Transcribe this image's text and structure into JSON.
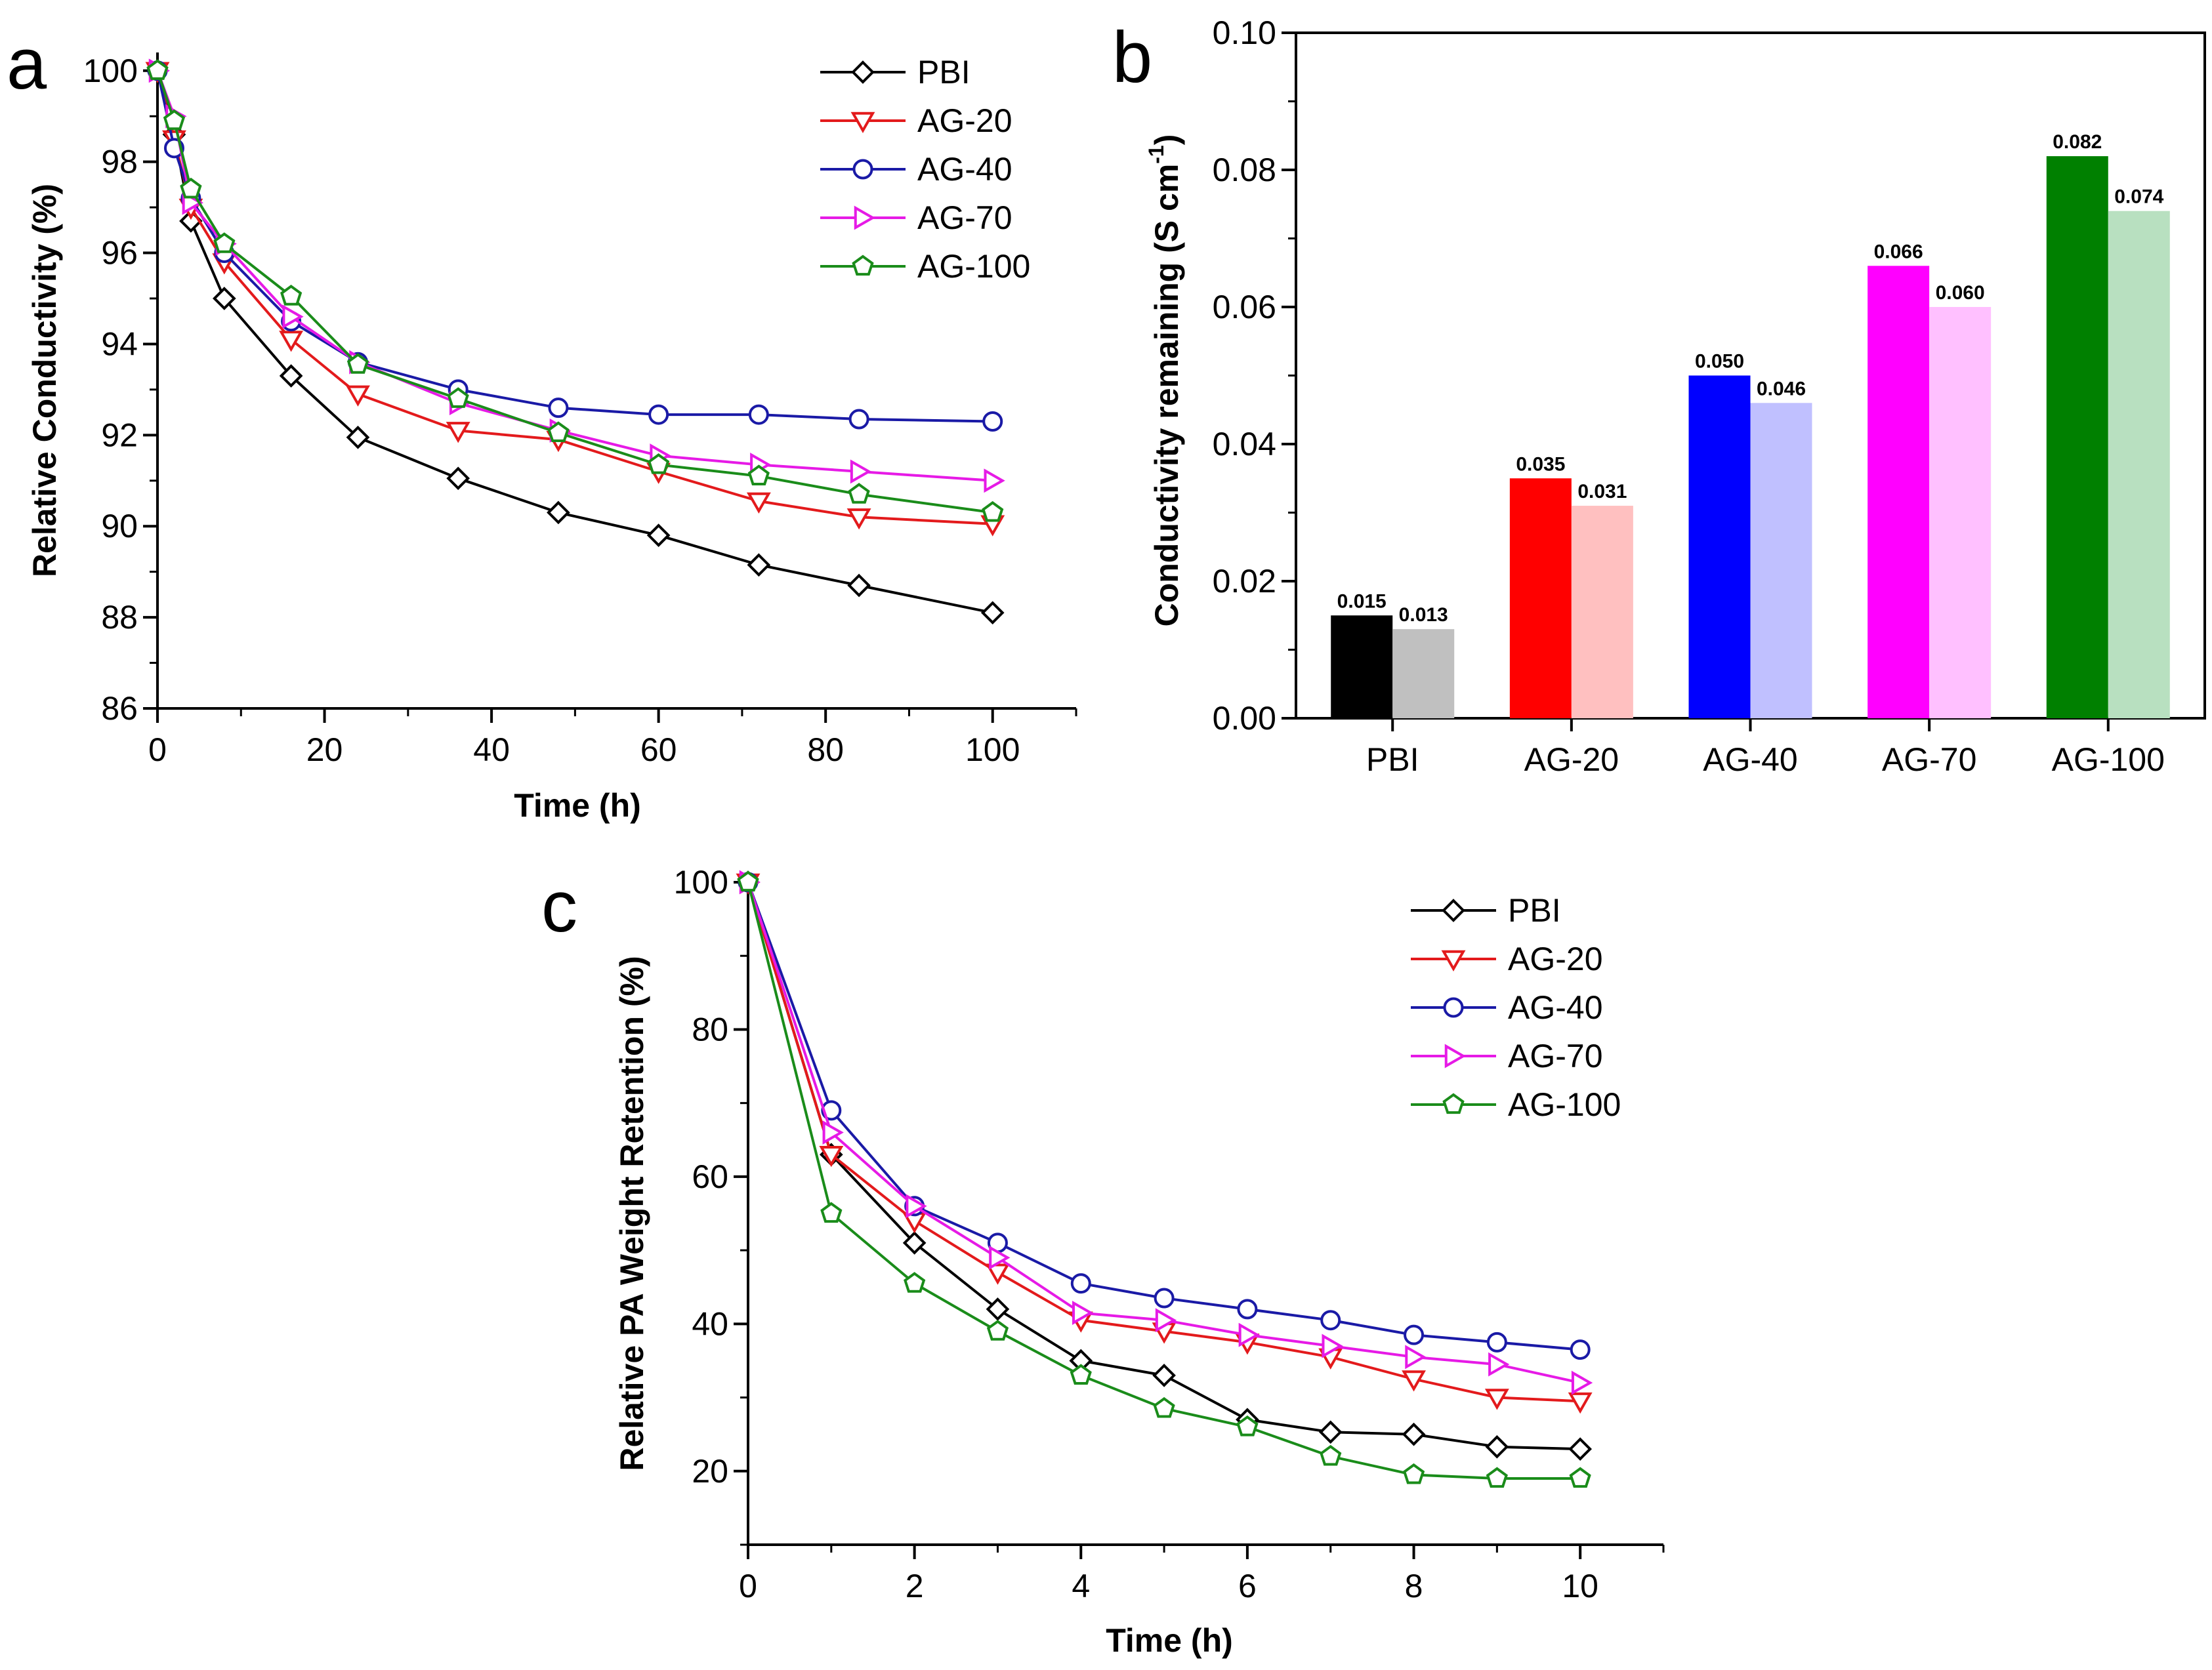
{
  "figure": {
    "panel_labels": [
      "a",
      "b",
      "c"
    ]
  },
  "chart_data": [
    {
      "id": "a",
      "type": "line",
      "title": "",
      "xlabel": "Time (h)",
      "ylabel": "Relative Conductivity (%)",
      "xlim": [
        0,
        110
      ],
      "ylim": [
        86,
        100.4
      ],
      "xticks": [
        0,
        20,
        40,
        60,
        80,
        100
      ],
      "yticks": [
        86,
        88,
        90,
        92,
        94,
        96,
        98,
        100
      ],
      "legend_position": "top-right",
      "series": [
        {
          "name": "PBI",
          "marker": "diamond",
          "color": "#000000",
          "x": [
            0,
            2,
            4,
            8,
            16,
            24,
            36,
            48,
            60,
            72,
            84,
            100
          ],
          "y": [
            100,
            98.6,
            96.7,
            95.0,
            93.3,
            91.95,
            91.05,
            90.3,
            89.8,
            89.15,
            88.7,
            88.1
          ]
        },
        {
          "name": "AG-20",
          "marker": "triangle-down",
          "color": "#e31a1c",
          "x": [
            0,
            2,
            4,
            8,
            16,
            24,
            36,
            48,
            60,
            72,
            84,
            100
          ],
          "y": [
            100,
            98.5,
            97.0,
            95.8,
            94.1,
            92.9,
            92.1,
            91.9,
            91.2,
            90.55,
            90.2,
            90.05
          ]
        },
        {
          "name": "AG-40",
          "marker": "circle",
          "color": "#1a1aa6",
          "x": [
            0,
            2,
            4,
            8,
            16,
            24,
            36,
            48,
            60,
            72,
            84,
            100
          ],
          "y": [
            100,
            98.3,
            97.2,
            96.0,
            94.5,
            93.6,
            93.0,
            92.6,
            92.45,
            92.45,
            92.35,
            92.3
          ]
        },
        {
          "name": "AG-70",
          "marker": "triangle-right",
          "color": "#e61ae6",
          "x": [
            0,
            2,
            4,
            8,
            16,
            24,
            36,
            48,
            60,
            72,
            84,
            100
          ],
          "y": [
            100,
            99.0,
            97.1,
            96.2,
            94.6,
            93.6,
            92.7,
            92.1,
            91.55,
            91.35,
            91.2,
            91.0
          ]
        },
        {
          "name": "AG-100",
          "marker": "pentagon",
          "color": "#1a8c1a",
          "x": [
            0,
            2,
            4,
            8,
            16,
            24,
            36,
            48,
            60,
            72,
            84,
            100
          ],
          "y": [
            100,
            98.9,
            97.4,
            96.2,
            95.05,
            93.55,
            92.8,
            92.05,
            91.35,
            91.1,
            90.7,
            90.3
          ]
        }
      ]
    },
    {
      "id": "b",
      "type": "bar",
      "title": "",
      "xlabel": "",
      "ylabel": "Conductivity remaining (S cm",
      "ylabel_sup": "-1",
      "ylabel_end": ")",
      "ylim": [
        0,
        0.1
      ],
      "yticks": [
        0.0,
        0.02,
        0.04,
        0.06,
        0.08,
        0.1
      ],
      "ytick_labels": [
        "0.00",
        "0.02",
        "0.04",
        "0.06",
        "0.08",
        "0.10"
      ],
      "categories": [
        "PBI",
        "AG-20",
        "AG-40",
        "AG-70",
        "AG-100"
      ],
      "series": [
        {
          "name": "dark",
          "values": [
            0.015,
            0.035,
            0.05,
            0.066,
            0.082
          ],
          "labels": [
            "0.015",
            "0.035",
            "0.050",
            "0.066",
            "0.082"
          ],
          "colors": [
            "#000000",
            "#ff0000",
            "#0000ff",
            "#ff00ff",
            "#008000"
          ]
        },
        {
          "name": "light",
          "values": [
            0.013,
            0.031,
            0.046,
            0.06,
            0.074
          ],
          "labels": [
            "0.013",
            "0.031",
            "0.046",
            "0.060",
            "0.074"
          ],
          "colors": [
            "#c0c0c0",
            "#ffc0c0",
            "#c0c0ff",
            "#ffc0ff",
            "#b8e0c0"
          ]
        }
      ]
    },
    {
      "id": "c",
      "type": "line",
      "title": "",
      "xlabel": "Time (h)",
      "ylabel": "Relative PA Weight Retention (%)",
      "xlim": [
        0,
        11
      ],
      "ylim": [
        10,
        100
      ],
      "xticks": [
        0,
        2,
        4,
        6,
        8,
        10
      ],
      "yticks": [
        20,
        40,
        60,
        80,
        100
      ],
      "legend_position": "top-right",
      "series": [
        {
          "name": "PBI",
          "marker": "diamond",
          "color": "#000000",
          "x": [
            0,
            1,
            2,
            3,
            4,
            5,
            6,
            7,
            8,
            9,
            10
          ],
          "y": [
            100,
            63,
            51,
            42,
            35,
            33,
            27,
            25.3,
            25,
            23.3,
            23
          ]
        },
        {
          "name": "AG-20",
          "marker": "triangle-down",
          "color": "#e31a1c",
          "x": [
            0,
            1,
            2,
            3,
            4,
            5,
            6,
            7,
            8,
            9,
            10
          ],
          "y": [
            100,
            63,
            54,
            47,
            40.5,
            39,
            37.5,
            35.5,
            32.5,
            30,
            29.5
          ]
        },
        {
          "name": "AG-40",
          "marker": "circle",
          "color": "#1a1aa6",
          "x": [
            0,
            1,
            2,
            3,
            4,
            5,
            6,
            7,
            8,
            9,
            10
          ],
          "y": [
            100,
            69,
            56,
            51,
            45.5,
            43.5,
            42,
            40.5,
            38.5,
            37.5,
            36.5
          ]
        },
        {
          "name": "AG-70",
          "marker": "triangle-right",
          "color": "#e61ae6",
          "x": [
            0,
            1,
            2,
            3,
            4,
            5,
            6,
            7,
            8,
            9,
            10
          ],
          "y": [
            100,
            66,
            56,
            49,
            41.5,
            40.5,
            38.5,
            37,
            35.5,
            34.5,
            32
          ]
        },
        {
          "name": "AG-100",
          "marker": "pentagon",
          "color": "#1a8c1a",
          "x": [
            0,
            1,
            2,
            3,
            4,
            5,
            6,
            7,
            8,
            9,
            10
          ],
          "y": [
            100,
            55,
            45.5,
            39,
            33,
            28.5,
            26,
            22,
            19.5,
            19,
            19
          ]
        }
      ]
    }
  ]
}
